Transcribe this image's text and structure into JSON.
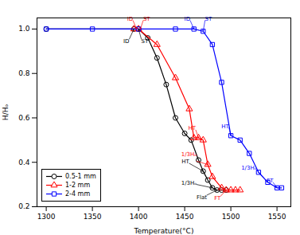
{
  "chart_data": {
    "type": "line",
    "xlabel": "Temperature(°C)",
    "ylabel": "H/Hₒ",
    "xlim": [
      1290,
      1565
    ],
    "ylim": [
      0.2,
      1.05
    ],
    "xticks": [
      1300,
      1350,
      1400,
      1450,
      1500,
      1550
    ],
    "yticks": [
      0.2,
      0.4,
      0.6,
      0.8,
      {
        "value": 1.0,
        "label": "1.0"
      }
    ],
    "grid": false,
    "legend": "lower left",
    "series": [
      {
        "name": "0.5-1 mm",
        "color": "black",
        "marker": "circle",
        "x": [
          1300,
          1395,
          1400,
          1410,
          1420,
          1430,
          1440,
          1450,
          1457,
          1465,
          1470,
          1475,
          1480,
          1485,
          1490,
          1495
        ],
        "values": [
          1.0,
          1.0,
          1.0,
          0.96,
          0.87,
          0.75,
          0.6,
          0.53,
          0.5,
          0.41,
          0.36,
          0.32,
          0.285,
          0.275,
          0.275,
          0.275
        ]
      },
      {
        "name": "1-2 mm",
        "color": "red",
        "marker": "triangle",
        "x": [
          1395,
          1400,
          1420,
          1440,
          1455,
          1460,
          1465,
          1470,
          1475,
          1480,
          1490,
          1495,
          1500,
          1505,
          1510
        ],
        "values": [
          1.0,
          1.0,
          0.93,
          0.78,
          0.64,
          0.51,
          0.51,
          0.5,
          0.39,
          0.335,
          0.285,
          0.275,
          0.275,
          0.275,
          0.275
        ]
      },
      {
        "name": "2-4 mm",
        "color": "blue",
        "marker": "square",
        "x": [
          1300,
          1350,
          1400,
          1440,
          1460,
          1470,
          1480,
          1490,
          1500,
          1510,
          1520,
          1530,
          1540,
          1550,
          1555
        ],
        "values": [
          1.0,
          1.0,
          1.0,
          1.0,
          1.0,
          0.99,
          0.93,
          0.76,
          0.52,
          0.5,
          0.44,
          0.355,
          0.31,
          0.285,
          0.285
        ]
      }
    ],
    "annotations": [
      {
        "text": "ID",
        "xy": [
          1395,
          1.0
        ],
        "xytext": [
          1390,
          0.955
        ],
        "color": "black"
      },
      {
        "text": "ST",
        "xy": [
          1400,
          1.0
        ],
        "xytext": [
          1403,
          0.955
        ],
        "color": "black"
      },
      {
        "text": "HT",
        "xy": [
          1470,
          0.36
        ],
        "xytext": [
          1455,
          0.395
        ],
        "color": "black"
      },
      {
        "text": "1/3Hₒ",
        "xy": [
          1480,
          0.285
        ],
        "xytext": [
          1463,
          0.3
        ],
        "color": "black"
      },
      {
        "text": "Flat",
        "xy": [
          1485,
          0.275
        ],
        "xytext": [
          1474,
          0.252
        ],
        "color": "black"
      },
      {
        "text": "ID",
        "xy": [
          1398,
          1.0
        ],
        "xytext": [
          1394,
          1.038
        ],
        "color": "red"
      },
      {
        "text": "ST",
        "xy": [
          1402,
          1.0
        ],
        "xytext": [
          1405,
          1.038
        ],
        "color": "red"
      },
      {
        "text": "HT",
        "xy": [
          1465,
          0.51
        ],
        "xytext": [
          1462,
          0.545
        ],
        "color": "red"
      },
      {
        "text": "1/3Hₒ",
        "xy": [
          1475,
          0.39
        ],
        "xytext": [
          1463,
          0.405
        ],
        "color": "red"
      },
      {
        "text": "FT",
        "xy": [
          1495,
          0.275
        ],
        "xytext": [
          1489,
          0.248
        ],
        "color": "red"
      },
      {
        "text": "ID",
        "xy": [
          1460,
          1.0
        ],
        "xytext": [
          1456,
          1.038
        ],
        "color": "blue"
      },
      {
        "text": "ST",
        "xy": [
          1470,
          0.99
        ],
        "xytext": [
          1472,
          1.038
        ],
        "color": "blue"
      },
      {
        "text": "HT",
        "xy": [
          1500,
          0.52
        ],
        "xytext": [
          1498,
          0.555
        ],
        "color": "blue"
      },
      {
        "text": "1/3Hₒ",
        "xy": [
          1540,
          0.31
        ],
        "xytext": [
          1528,
          0.365
        ],
        "color": "blue"
      },
      {
        "text": "FT",
        "xy": [
          1550,
          0.285
        ],
        "xytext": [
          1546,
          0.308
        ],
        "color": "blue"
      }
    ]
  }
}
